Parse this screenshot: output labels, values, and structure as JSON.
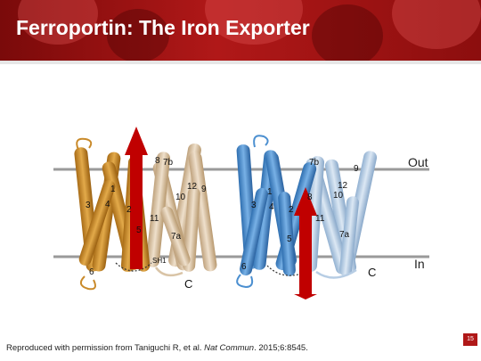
{
  "slide": {
    "title": "Ferroportin: The Iron Exporter",
    "page_number": "15",
    "credit_prefix": "Reproduced with permission from Taniguchi R, et al. ",
    "credit_journal": "Nat Commun",
    "credit_suffix": ". 2015;6:8545."
  },
  "figure": {
    "membrane_out_label": "Out",
    "membrane_in_label": "In",
    "left_structure": {
      "gold_helix_labels": [
        "1",
        "2",
        "3",
        "4",
        "5",
        "6"
      ],
      "tan_helix_labels": [
        "7b",
        "8",
        "9",
        "10",
        "11",
        "12",
        "7a"
      ],
      "sh1_label": "SH1",
      "c_terminus_label": "C",
      "arrow_direction": "up"
    },
    "right_structure": {
      "blue_helix_labels": [
        "1",
        "2",
        "3",
        "4",
        "5",
        "6"
      ],
      "lightblue_helix_labels": [
        "7b",
        "8",
        "9",
        "10",
        "11",
        "12",
        "7a"
      ],
      "c_terminus_label": "C",
      "arrow_direction": "down"
    },
    "colors": {
      "gold": "#c98a2a",
      "tan": "#d9c4a6",
      "blue": "#4b8fd0",
      "light_blue": "#b7cde4",
      "arrow_red": "#c00000",
      "membrane_gray": "#9a9a9a"
    }
  }
}
